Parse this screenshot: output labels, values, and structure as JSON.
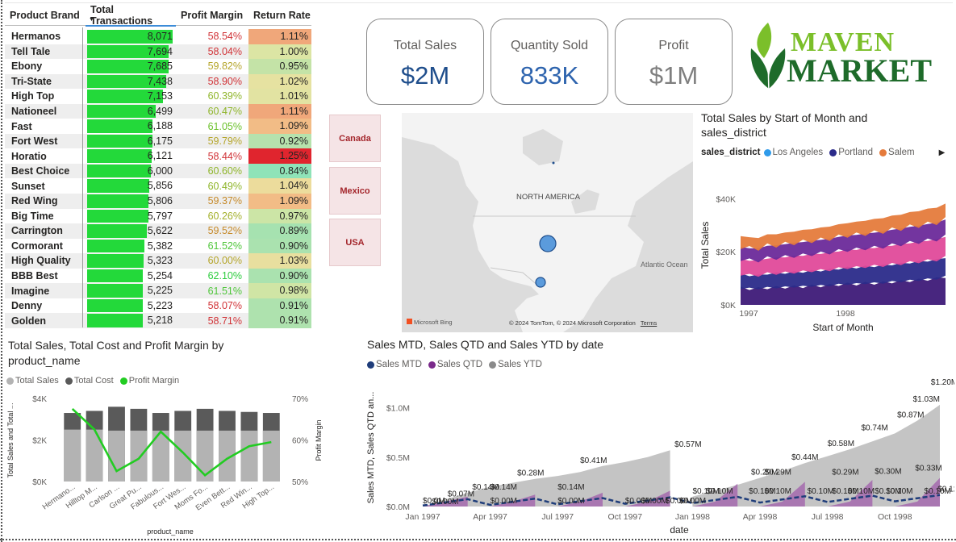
{
  "table": {
    "headers": [
      "Product Brand",
      "Total Transactions",
      "Profit Margin",
      "Return Rate"
    ],
    "max_transactions": 8071,
    "rows": [
      {
        "brand": "Hermanos",
        "transactions": 8071,
        "transactions_label": "8,071",
        "margin": "58.54%",
        "margin_color": "#d13438",
        "return": "1.11%",
        "return_color": "#f0a77a"
      },
      {
        "brand": "Tell Tale",
        "transactions": 7694,
        "transactions_label": "7,694",
        "margin": "58.04%",
        "margin_color": "#d13438",
        "return": "1.00%",
        "return_color": "#dce5a4"
      },
      {
        "brand": "Ebony",
        "transactions": 7685,
        "transactions_label": "7,685",
        "margin": "59.82%",
        "margin_color": "#b5a52a",
        "return": "0.95%",
        "return_color": "#c4e3a7"
      },
      {
        "brand": "Tri-State",
        "transactions": 7438,
        "transactions_label": "7,438",
        "margin": "58.90%",
        "margin_color": "#d13438",
        "return": "1.02%",
        "return_color": "#e6e2a1"
      },
      {
        "brand": "High Top",
        "transactions": 7153,
        "transactions_label": "7,153",
        "margin": "60.39%",
        "margin_color": "#8fb52a",
        "return": "1.01%",
        "return_color": "#e2e3a2"
      },
      {
        "brand": "Nationeel",
        "transactions": 6499,
        "transactions_label": "6,499",
        "margin": "60.47%",
        "margin_color": "#8fb52a",
        "return": "1.11%",
        "return_color": "#f0a77a"
      },
      {
        "brand": "Fast",
        "transactions": 6188,
        "transactions_label": "6,188",
        "margin": "61.05%",
        "margin_color": "#6bc12a",
        "return": "1.09%",
        "return_color": "#f2bc86"
      },
      {
        "brand": "Fort West",
        "transactions": 6175,
        "transactions_label": "6,175",
        "margin": "59.79%",
        "margin_color": "#b5a52a",
        "return": "0.92%",
        "return_color": "#b6e2ad"
      },
      {
        "brand": "Horatio",
        "transactions": 6121,
        "transactions_label": "6,121",
        "margin": "58.44%",
        "margin_color": "#d13438",
        "return": "1.25%",
        "return_color": "#e0252e"
      },
      {
        "brand": "Best Choice",
        "transactions": 6000,
        "transactions_label": "6,000",
        "margin": "60.60%",
        "margin_color": "#8fb52a",
        "return": "0.84%",
        "return_color": "#8fe3b8"
      },
      {
        "brand": "Sunset",
        "transactions": 5856,
        "transactions_label": "5,856",
        "margin": "60.49%",
        "margin_color": "#8fb52a",
        "return": "1.04%",
        "return_color": "#ecdc9c"
      },
      {
        "brand": "Red Wing",
        "transactions": 5806,
        "transactions_label": "5,806",
        "margin": "59.37%",
        "margin_color": "#c68a2a",
        "return": "1.09%",
        "return_color": "#f2bc86"
      },
      {
        "brand": "Big Time",
        "transactions": 5797,
        "transactions_label": "5,797",
        "margin": "60.26%",
        "margin_color": "#a3b02a",
        "return": "0.97%",
        "return_color": "#cce5a6"
      },
      {
        "brand": "Carrington",
        "transactions": 5622,
        "transactions_label": "5,622",
        "margin": "59.52%",
        "margin_color": "#c68a2a",
        "return": "0.89%",
        "return_color": "#a6e2b0"
      },
      {
        "brand": "Cormorant",
        "transactions": 5382,
        "transactions_label": "5,382",
        "margin": "61.52%",
        "margin_color": "#4fc63a",
        "return": "0.90%",
        "return_color": "#aae2af"
      },
      {
        "brand": "High Quality",
        "transactions": 5323,
        "transactions_label": "5,323",
        "margin": "60.00%",
        "margin_color": "#b5a52a",
        "return": "1.03%",
        "return_color": "#e8df9f"
      },
      {
        "brand": "BBB Best",
        "transactions": 5254,
        "transactions_label": "5,254",
        "margin": "62.10%",
        "margin_color": "#2dcc3e",
        "return": "0.90%",
        "return_color": "#aae2af"
      },
      {
        "brand": "Imagine",
        "transactions": 5225,
        "transactions_label": "5,225",
        "margin": "61.51%",
        "margin_color": "#4fc63a",
        "return": "0.98%",
        "return_color": "#d0e5a5"
      },
      {
        "brand": "Denny",
        "transactions": 5223,
        "transactions_label": "5,223",
        "margin": "58.07%",
        "margin_color": "#d13438",
        "return": "0.91%",
        "return_color": "#aee2ae"
      },
      {
        "brand": "Golden",
        "transactions": 5218,
        "transactions_label": "5,218",
        "margin": "58.71%",
        "margin_color": "#d13438",
        "return": "0.91%",
        "return_color": "#aee2ae"
      }
    ]
  },
  "cards": [
    {
      "label": "Total Sales",
      "value": "$2M",
      "color": "#1f4e8c"
    },
    {
      "label": "Quantity Sold",
      "value": "833K",
      "color": "#2e64ae"
    },
    {
      "label": "Profit",
      "value": "$1M",
      "color": "#7f7f7f"
    }
  ],
  "logo": {
    "line1": "MAVEN",
    "line2": "MARKET"
  },
  "countries": [
    "Canada",
    "Mexico",
    "USA"
  ],
  "map": {
    "region_label": "NORTH AMERICA",
    "ocean_label": "Atlantic Ocean",
    "bing_label": "Microsoft Bing",
    "copyright": "© 2024 TomTom, © 2024 Microsoft Corporation",
    "terms": "Terms"
  },
  "area_chart": {
    "title_line1": "Total Sales by Start of Month and",
    "title_line2": "sales_district",
    "legend_title": "sales_district",
    "legend_items": [
      {
        "name": "Los Angeles",
        "color": "#2f9bea"
      },
      {
        "name": "Portland",
        "color": "#2b2b8a"
      },
      {
        "name": "Salem",
        "color": "#e57b3c"
      }
    ],
    "more_icon": "chevron-right-icon",
    "colors": [
      "#3e1a78",
      "#2b2b8a",
      "#e04a9a",
      "#6c2a9a",
      "#e57b3c",
      "#e84a9b",
      "#2f9bea"
    ]
  },
  "bar_chart": {
    "title_line1": "Total Sales, Total Cost and Profit Margin by",
    "title_line2": "product_name",
    "legend": [
      {
        "name": "Total Sales",
        "color": "#b3b3b3"
      },
      {
        "name": "Total Cost",
        "color": "#5a5a5a"
      },
      {
        "name": "Profit Margin",
        "color": "#22cc22"
      }
    ]
  },
  "ytd_chart": {
    "title": "Sales MTD, Sales QTD and Sales YTD by date",
    "legend": [
      {
        "name": "Sales MTD",
        "color": "#1f3d7a"
      },
      {
        "name": "Sales QTD",
        "color": "#7a2a8a"
      },
      {
        "name": "Sales YTD",
        "color": "#8a8a8a"
      }
    ]
  },
  "chart_data": [
    {
      "type": "area",
      "title": "Total Sales by Start of Month and sales_district",
      "xlabel": "Start of Month",
      "ylabel": "Total Sales",
      "x_ticks": [
        "1997",
        "1998"
      ],
      "y_ticks": [
        "$0K",
        "$20K",
        "$40K"
      ],
      "ylim": [
        0,
        45000
      ],
      "stacked": true,
      "series": [
        {
          "name": "Los Angeles",
          "values": [
            6000,
            6500,
            5800,
            6800,
            6200,
            7000,
            6500,
            7200,
            6800,
            7500,
            7000,
            8000,
            7500,
            8200,
            7800,
            8500,
            8000,
            9000,
            8500,
            9500,
            9000,
            10000,
            9500,
            11000
          ]
        },
        {
          "name": "Portland",
          "values": [
            5000,
            5200,
            4800,
            5500,
            5100,
            5600,
            5300,
            5800,
            5500,
            6000,
            5700,
            6200,
            6000,
            6400,
            6100,
            6600,
            6300,
            6800,
            6500,
            7000,
            6700,
            7200,
            6900,
            7500
          ]
        },
        {
          "name": "Salem",
          "values": [
            5500,
            5800,
            5400,
            6000,
            5700,
            6200,
            5900,
            6400,
            6100,
            6600,
            6300,
            6800,
            6500,
            7000,
            6700,
            7200,
            6900,
            7400,
            7100,
            7600,
            7300,
            7800,
            7500,
            8000
          ]
        },
        {
          "name": "",
          "values": [
            4500,
            4700,
            4400,
            4900,
            4600,
            5000,
            4800,
            5200,
            4900,
            5300,
            5100,
            5500,
            5300,
            5700,
            5400,
            5800,
            5600,
            6000,
            5800,
            6200,
            6000,
            6400,
            6200,
            6600
          ]
        },
        {
          "name": "",
          "values": [
            4000,
            4200,
            3900,
            4300,
            4100,
            4400,
            4200,
            4600,
            4300,
            4700,
            4500,
            4800,
            4600,
            5000,
            4800,
            5200,
            5000,
            5400,
            5200,
            5600,
            5400,
            5800,
            5600,
            6000
          ]
        }
      ]
    },
    {
      "type": "bar",
      "title": "Total Sales, Total Cost and Profit Margin by product_name",
      "xlabel": "product_name",
      "ylabel": "Total Sales and Total ...",
      "y2label": "Profit Margin",
      "categories": [
        "Hermano...",
        "Hilltop M...",
        "Carlson ...",
        "Great Pu...",
        "Fabulous...",
        "Fort Wes...",
        "Moms Fo...",
        "Even Bett...",
        "Red Win...",
        "High Top..."
      ],
      "y_ticks": [
        "$0K",
        "$2K",
        "$4K"
      ],
      "y2_ticks": [
        "50%",
        "60%",
        "70%"
      ],
      "ylim": [
        0,
        4000
      ],
      "y2lim": [
        50,
        70
      ],
      "series": [
        {
          "name": "Total Sales",
          "values": [
            3300,
            3400,
            3600,
            3500,
            3300,
            3400,
            3500,
            3400,
            3350,
            3300
          ]
        },
        {
          "name": "Total Cost",
          "values": [
            2500,
            2500,
            2450,
            2450,
            2450,
            2450,
            2450,
            2450,
            2450,
            2450
          ]
        },
        {
          "name": "Profit Margin",
          "values": [
            67.5,
            62.5,
            52.5,
            55.5,
            62.0,
            57.0,
            51.5,
            55.5,
            58.5,
            59.5
          ]
        }
      ]
    },
    {
      "type": "area",
      "title": "Sales MTD, Sales QTD and Sales YTD by date",
      "xlabel": "date",
      "ylabel": "Sales MTD, Sales QTD an...",
      "x_ticks": [
        "Jan 1997",
        "Apr 1997",
        "Jul 1997",
        "Oct 1997",
        "Jan 1998",
        "Apr 1998",
        "Jul 1998",
        "Oct 1998"
      ],
      "y_ticks": [
        "$0.0M",
        "$0.5M",
        "$1.0M"
      ],
      "ylim": [
        0,
        1.25
      ],
      "series": [
        {
          "name": "Sales YTD",
          "labels": [
            "$0.0M",
            "$0.07M",
            "$0.14M",
            "$0.28M",
            "$0.41M",
            "$0.57M",
            "$0.10M",
            "$0.29M",
            "$0.44M",
            "$0.58M",
            "$0.74M",
            "$0.87M",
            "$1.03M",
            "$1.20M"
          ]
        },
        {
          "name": "Sales QTD",
          "labels": [
            "$0.00M",
            "$0.14M",
            "$0.00M",
            "$0.14M",
            "$0.00M",
            "$0.10M",
            "$0.29M",
            "$0.10M",
            "$0.29M",
            "$0.10M",
            "$0.30M",
            "$0.10M",
            "$0.33M"
          ]
        },
        {
          "name": "Sales MTD",
          "labels": [
            "$0.00M",
            "$0.00M",
            "$0.00M",
            "$0.00M",
            "$0.10M",
            "$0.10M",
            "$0.10M",
            "$0.10M",
            "$0.10M",
            "$0.12M"
          ]
        }
      ]
    }
  ]
}
